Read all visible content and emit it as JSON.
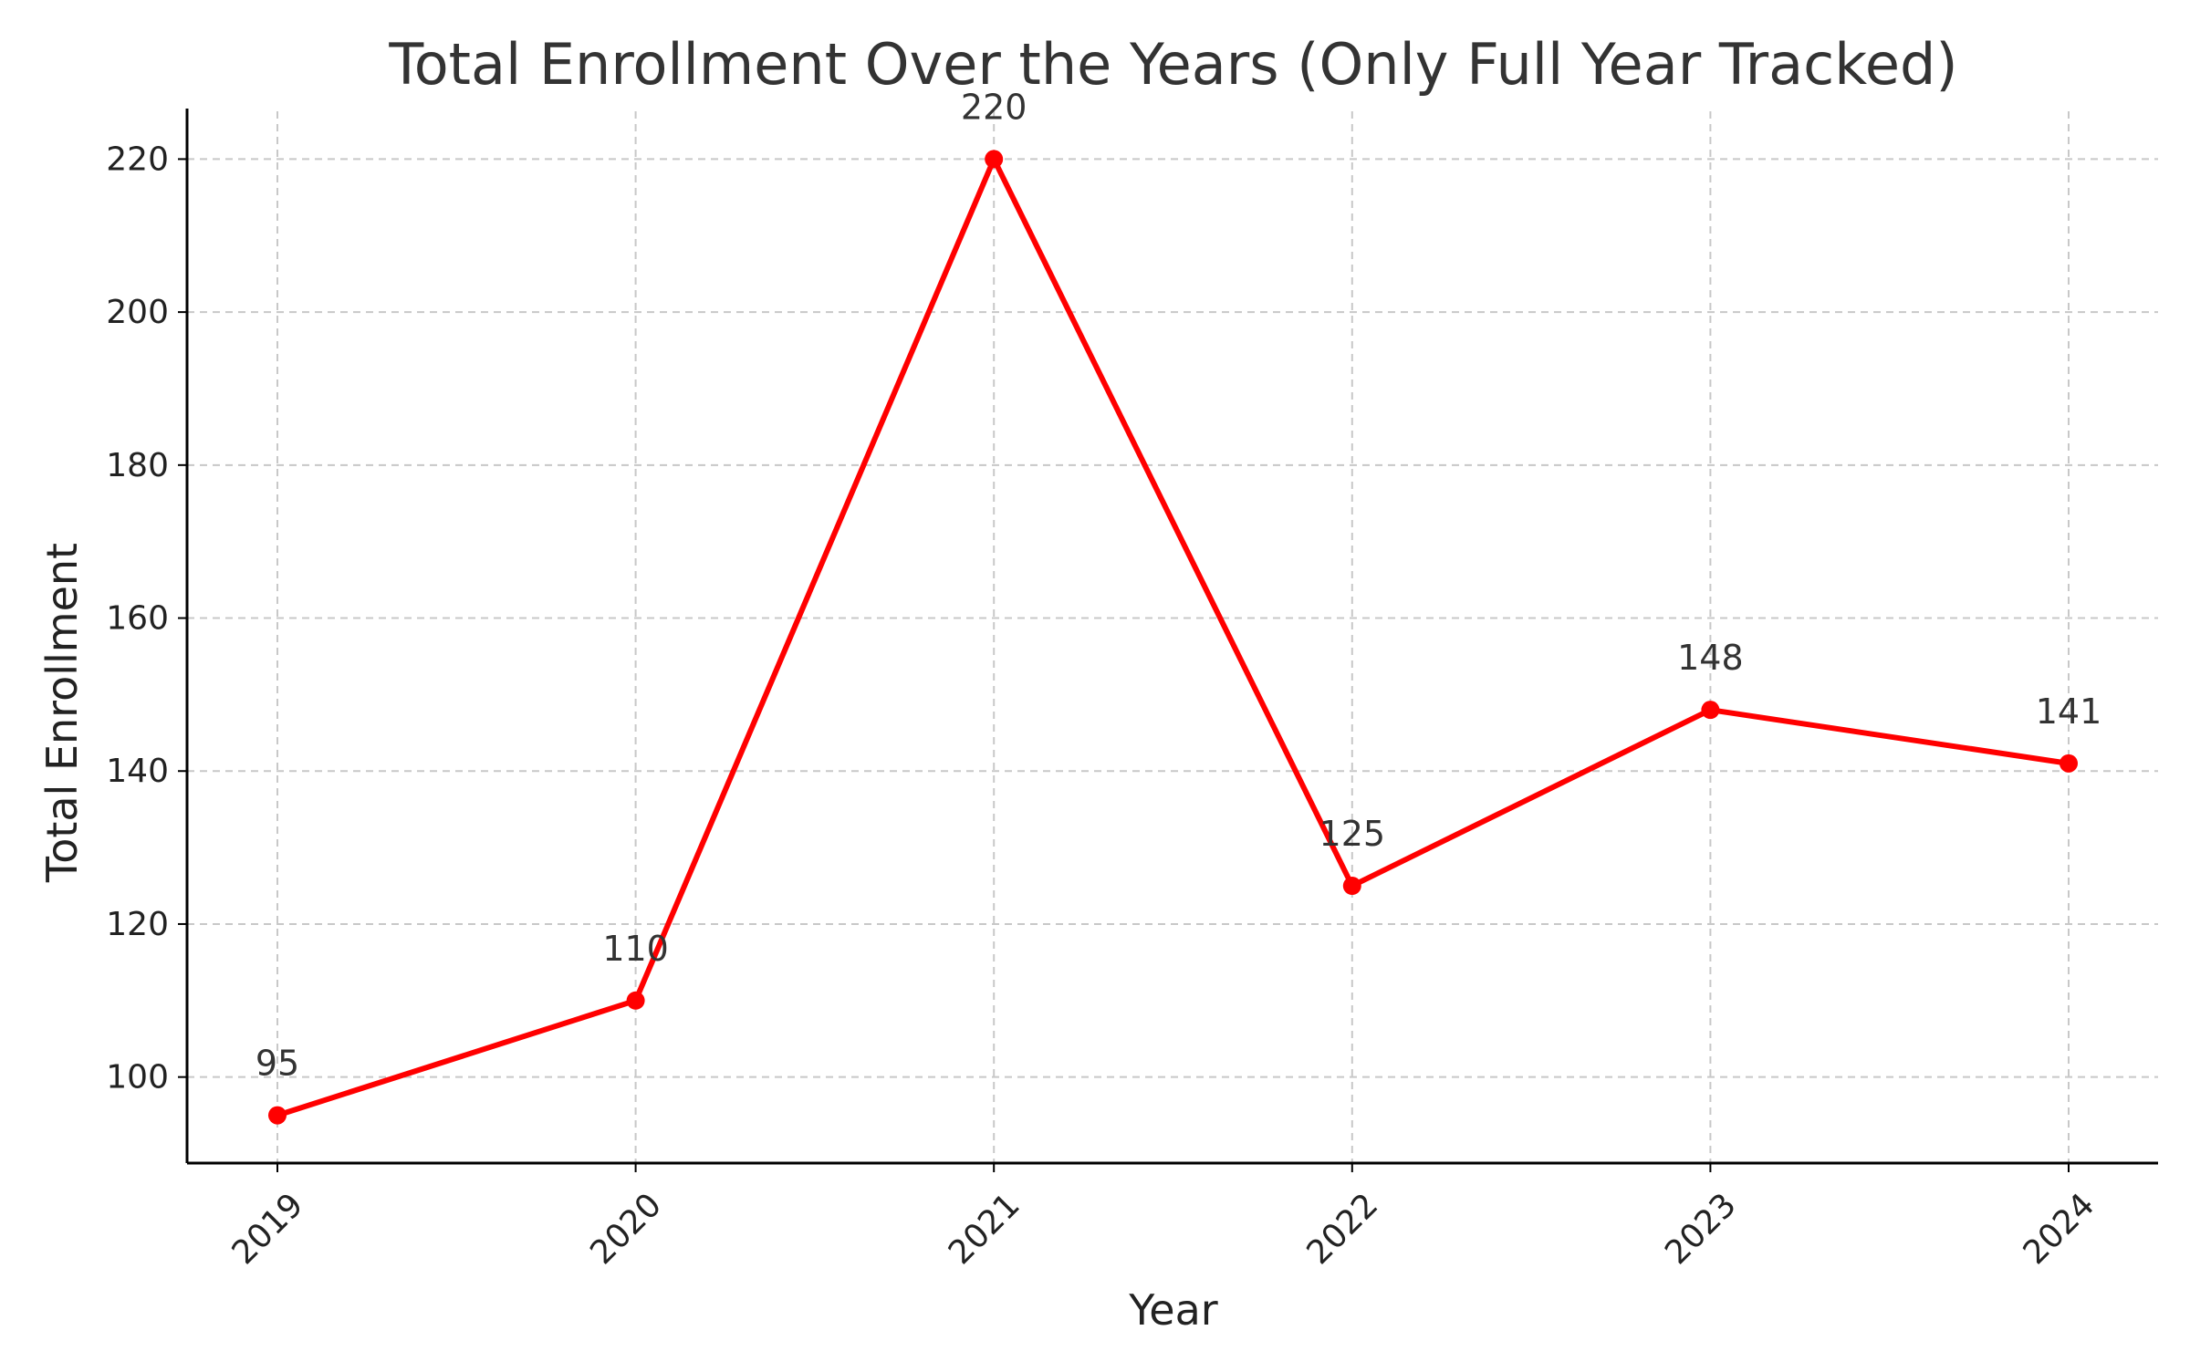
{
  "chart_data": {
    "type": "line",
    "title": "Total Enrollment Over the Years (Only Full Year Tracked)",
    "xlabel": "Year",
    "ylabel": "Total Enrollment",
    "categories": [
      "2019",
      "2020",
      "2021",
      "2022",
      "2023",
      "2024"
    ],
    "series": [
      {
        "values": [
          95,
          110,
          220,
          125,
          148,
          141
        ],
        "color": "#ff0000"
      }
    ],
    "data_labels": [
      "95",
      "110",
      "220",
      "125",
      "148",
      "141"
    ],
    "ylim": [
      88.75,
      226.25
    ],
    "yticks": [
      100,
      120,
      140,
      160,
      180,
      200,
      220
    ],
    "ytick_labels": [
      "100",
      "120",
      "140",
      "160",
      "180",
      "200",
      "220"
    ],
    "grid": true,
    "grid_style": "dashed",
    "legend": "none",
    "marker": "circle",
    "xtick_rotation_deg": 45
  }
}
